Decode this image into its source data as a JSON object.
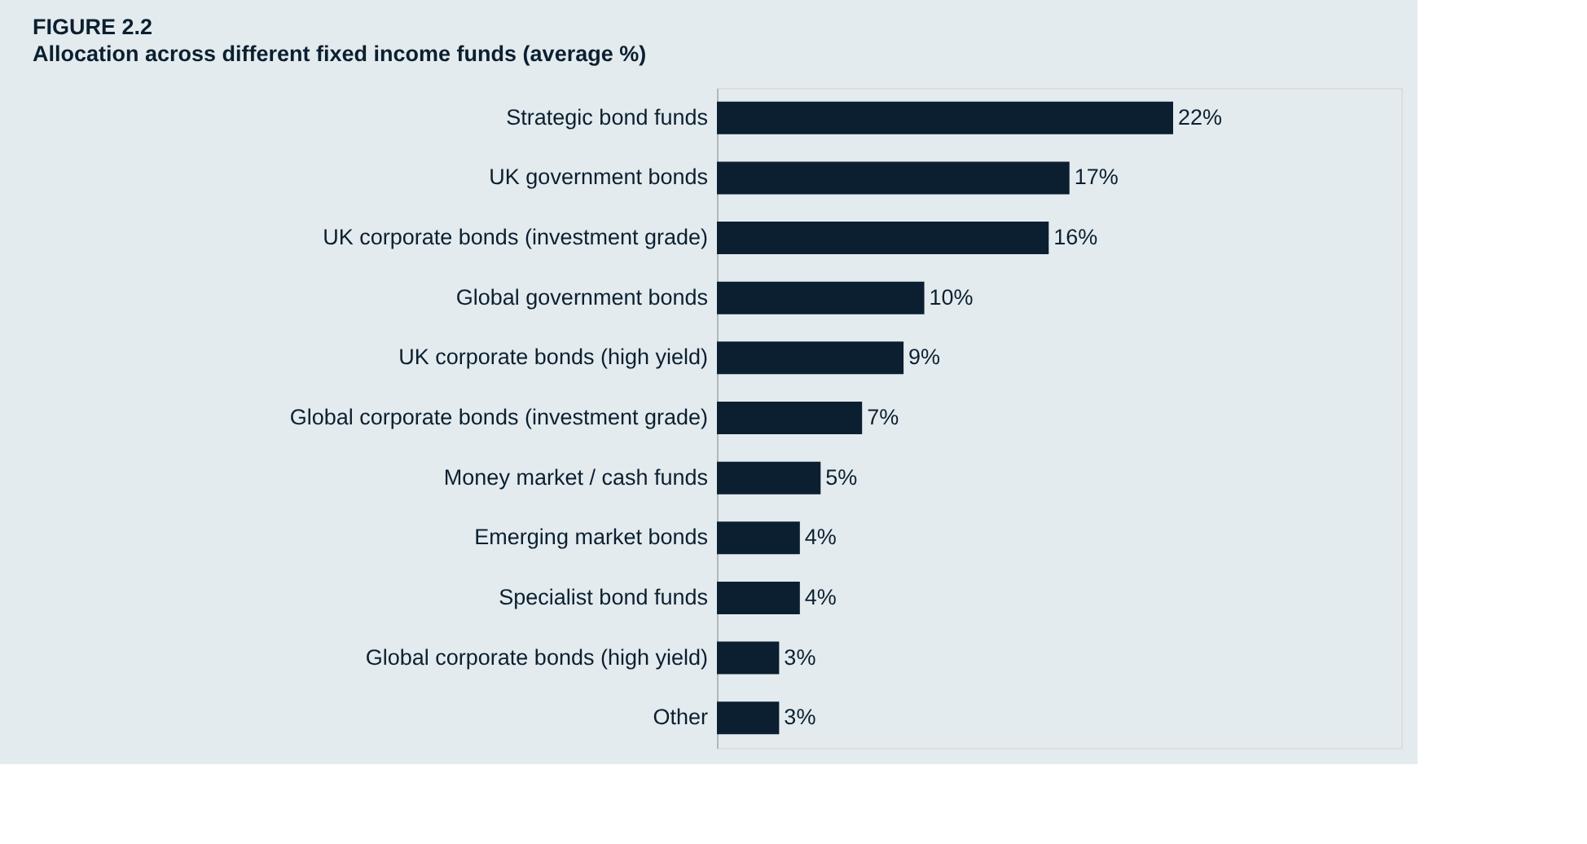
{
  "chart_data": {
    "type": "bar",
    "orientation": "horizontal",
    "title": "FIGURE 2.2",
    "subtitle": "Allocation across different fixed income funds (average %)",
    "categories": [
      "Strategic bond funds",
      "UK government bonds",
      "UK corporate bonds (investment grade)",
      "Global government bonds",
      "UK corporate bonds (high yield)",
      "Global corporate bonds (investment grade)",
      "Money market / cash funds",
      "Emerging market bonds",
      "Specialist bond funds",
      "Global corporate bonds (high yield)",
      "Other"
    ],
    "values": [
      22,
      17,
      16,
      10,
      9,
      7,
      5,
      4,
      4,
      3,
      3
    ],
    "value_labels": [
      "22%",
      "17%",
      "16%",
      "10%",
      "9%",
      "7%",
      "5%",
      "4%",
      "4%",
      "3%",
      "3%"
    ],
    "color": "#0b1f30",
    "grid": false,
    "tick_labels": "y"
  }
}
